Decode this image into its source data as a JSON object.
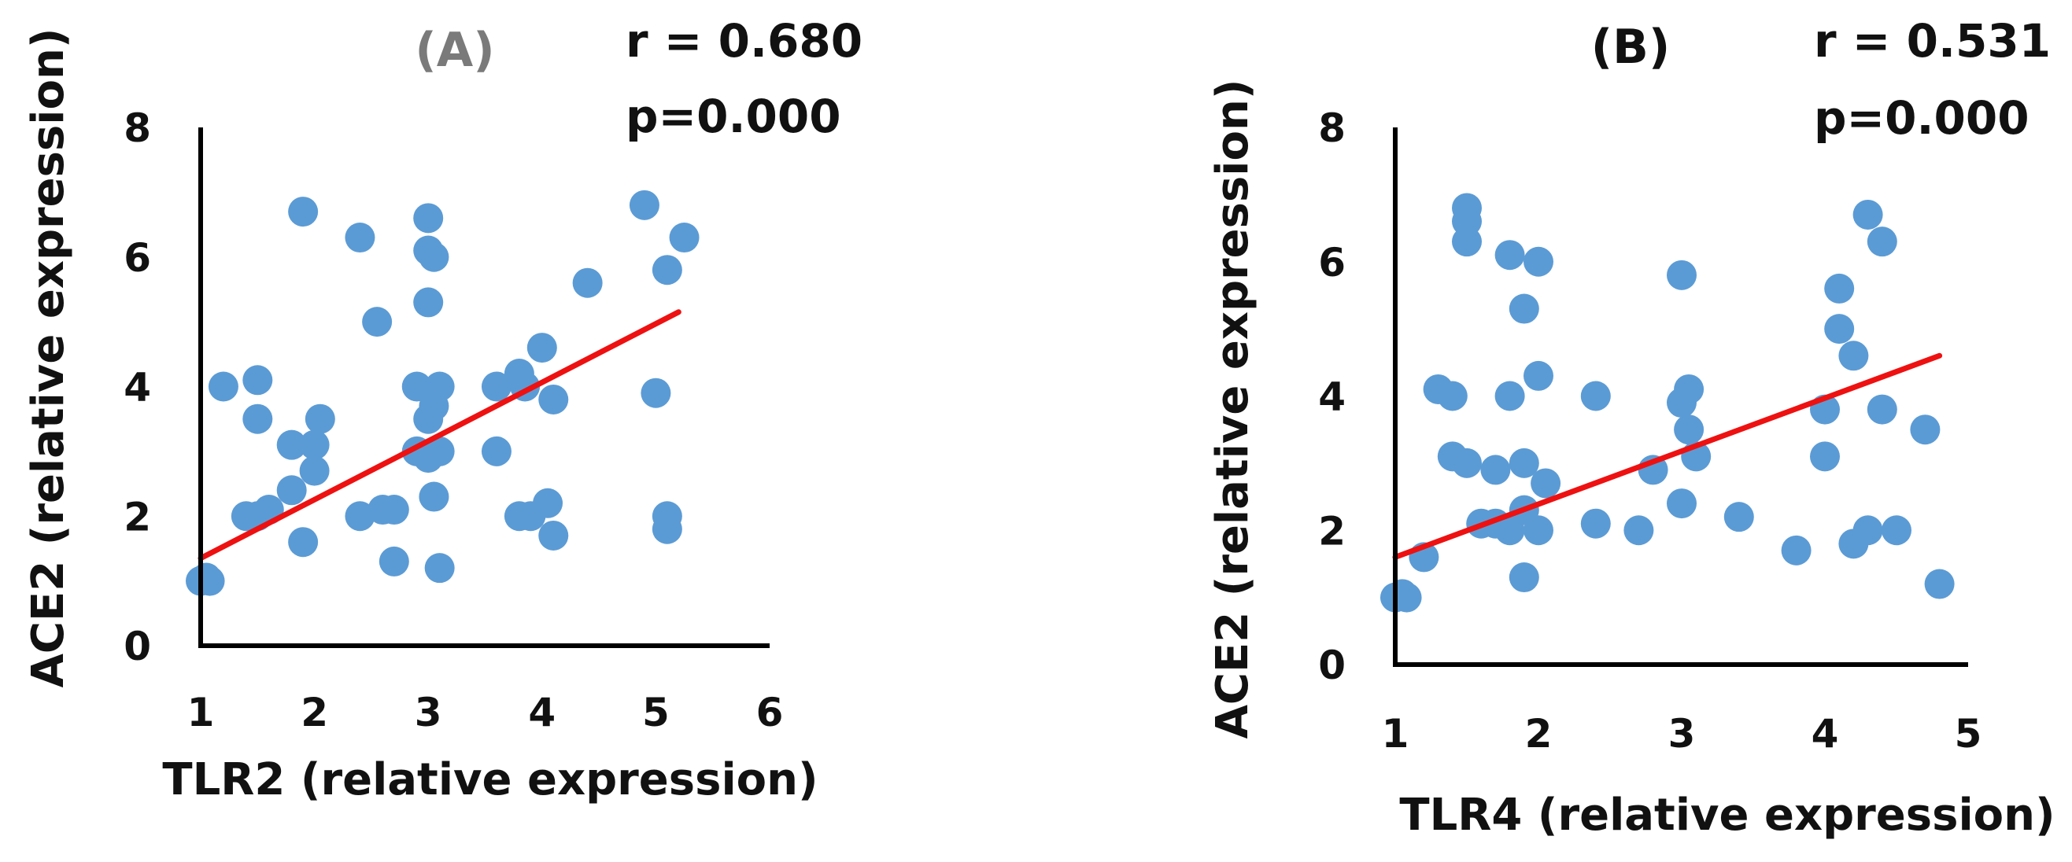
{
  "colors": {
    "points": "#5B9BD5",
    "trendline": "#EE1111",
    "axis": "#000000",
    "text": "#111111",
    "panel_a_title": "#7a7a7a"
  },
  "chart_data": [
    {
      "type": "scatter",
      "panel_label": "(A)",
      "stats": {
        "r": "r = 0.680",
        "p": "p=0.000"
      },
      "xlabel": "TLR2 (relative expression)",
      "ylabel": "ACE2 (relative expression)",
      "xlim": [
        1,
        6
      ],
      "ylim": [
        0,
        8
      ],
      "xticks": [
        "1",
        "2",
        "3",
        "4",
        "5",
        "6"
      ],
      "yticks": [
        "0",
        "2",
        "4",
        "6",
        "8"
      ],
      "trendline": {
        "x": [
          1,
          5.2
        ],
        "y": [
          1.35,
          5.15
        ]
      },
      "points": [
        [
          1.0,
          1.0
        ],
        [
          1.05,
          1.05
        ],
        [
          1.08,
          1.0
        ],
        [
          1.2,
          4.0
        ],
        [
          1.5,
          4.1
        ],
        [
          1.5,
          3.5
        ],
        [
          1.4,
          2.0
        ],
        [
          1.5,
          2.0
        ],
        [
          1.6,
          2.1
        ],
        [
          1.8,
          2.4
        ],
        [
          1.8,
          3.1
        ],
        [
          2.0,
          3.1
        ],
        [
          2.05,
          3.5
        ],
        [
          2.0,
          2.7
        ],
        [
          1.9,
          1.6
        ],
        [
          1.9,
          6.7
        ],
        [
          2.4,
          2.0
        ],
        [
          2.4,
          6.3
        ],
        [
          2.55,
          5.0
        ],
        [
          2.6,
          2.1
        ],
        [
          2.7,
          2.1
        ],
        [
          2.7,
          1.3
        ],
        [
          3.0,
          6.6
        ],
        [
          3.0,
          6.1
        ],
        [
          3.05,
          6.0
        ],
        [
          3.0,
          5.3
        ],
        [
          2.9,
          4.0
        ],
        [
          2.9,
          3.0
        ],
        [
          3.0,
          3.5
        ],
        [
          3.1,
          4.0
        ],
        [
          3.05,
          3.7
        ],
        [
          3.1,
          3.0
        ],
        [
          3.0,
          2.9
        ],
        [
          3.05,
          2.3
        ],
        [
          3.1,
          1.2
        ],
        [
          3.6,
          4.0
        ],
        [
          3.6,
          3.0
        ],
        [
          3.8,
          4.2
        ],
        [
          3.85,
          4.0
        ],
        [
          3.8,
          2.0
        ],
        [
          3.9,
          2.0
        ],
        [
          4.0,
          4.6
        ],
        [
          4.05,
          2.2
        ],
        [
          4.1,
          3.8
        ],
        [
          4.1,
          1.7
        ],
        [
          4.4,
          5.6
        ],
        [
          4.9,
          6.8
        ],
        [
          5.0,
          3.9
        ],
        [
          5.1,
          5.8
        ],
        [
          5.25,
          6.3
        ],
        [
          5.1,
          2.0
        ],
        [
          5.1,
          1.8
        ]
      ]
    },
    {
      "type": "scatter",
      "panel_label": "(B)",
      "stats": {
        "r": "r = 0.531",
        "p": "p=0.000"
      },
      "xlabel": "TLR4 (relative expression)",
      "ylabel": "ACE2 (relative expression)",
      "xlim": [
        1,
        5
      ],
      "ylim": [
        0,
        8
      ],
      "xticks": [
        "1",
        "2",
        "3",
        "4",
        "5"
      ],
      "yticks": [
        "0",
        "2",
        "4",
        "6",
        "8"
      ],
      "trendline": {
        "x": [
          1,
          4.8
        ],
        "y": [
          1.6,
          4.6
        ]
      },
      "points": [
        [
          1.0,
          1.0
        ],
        [
          1.05,
          1.05
        ],
        [
          1.08,
          1.0
        ],
        [
          1.2,
          1.6
        ],
        [
          1.3,
          4.1
        ],
        [
          1.4,
          4.0
        ],
        [
          1.4,
          3.1
        ],
        [
          1.5,
          3.0
        ],
        [
          1.5,
          6.8
        ],
        [
          1.5,
          6.6
        ],
        [
          1.5,
          6.3
        ],
        [
          1.6,
          2.1
        ],
        [
          1.7,
          2.1
        ],
        [
          1.7,
          2.9
        ],
        [
          1.8,
          2.0
        ],
        [
          1.8,
          4.0
        ],
        [
          1.8,
          6.1
        ],
        [
          1.9,
          5.3
        ],
        [
          1.9,
          3.0
        ],
        [
          1.9,
          2.3
        ],
        [
          1.9,
          1.3
        ],
        [
          2.0,
          6.0
        ],
        [
          2.0,
          4.3
        ],
        [
          2.0,
          2.0
        ],
        [
          2.05,
          2.7
        ],
        [
          2.4,
          4.0
        ],
        [
          2.4,
          2.1
        ],
        [
          2.7,
          2.0
        ],
        [
          2.8,
          2.9
        ],
        [
          3.0,
          5.8
        ],
        [
          3.0,
          3.9
        ],
        [
          3.05,
          4.1
        ],
        [
          3.05,
          3.5
        ],
        [
          3.1,
          3.1
        ],
        [
          3.0,
          2.4
        ],
        [
          3.4,
          2.2
        ],
        [
          3.8,
          1.7
        ],
        [
          4.0,
          3.8
        ],
        [
          4.0,
          3.1
        ],
        [
          4.1,
          5.6
        ],
        [
          4.1,
          5.0
        ],
        [
          4.2,
          4.6
        ],
        [
          4.2,
          1.8
        ],
        [
          4.3,
          6.7
        ],
        [
          4.4,
          6.3
        ],
        [
          4.4,
          3.8
        ],
        [
          4.3,
          2.0
        ],
        [
          4.5,
          2.0
        ],
        [
          4.7,
          3.5
        ],
        [
          4.8,
          1.2
        ]
      ]
    }
  ]
}
